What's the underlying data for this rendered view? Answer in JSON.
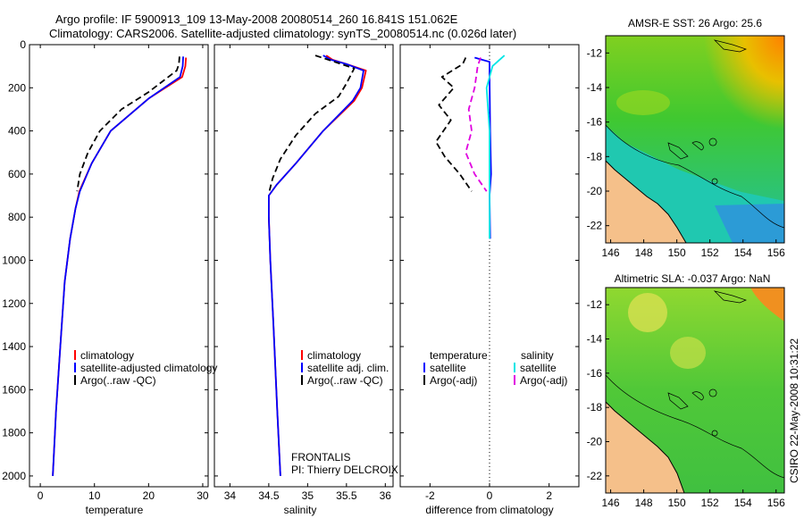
{
  "header": {
    "title_line1": "Argo profile: IF 5900913_109 13-May-2008 20080514_260 16.841S 151.062E",
    "title_line2": "Climatology: CARS2006. Satellite-adjusted climatology: synTS_20080514.nc (0.026d later)"
  },
  "colors": {
    "climatology": "#ff0000",
    "satellite": "#0000ff",
    "argo": "#000000",
    "sat_sal": "#00e5e5",
    "argo_sal": "#e000e0",
    "land": "#f5c08a"
  },
  "chart_data": [
    {
      "id": "temperature",
      "type": "line",
      "xlabel": "temperature",
      "ylabel": "",
      "xlim": [
        -2,
        31
      ],
      "ylim": [
        2050,
        0
      ],
      "xticks": [
        0,
        10,
        20,
        30
      ],
      "yticks": [
        0,
        200,
        400,
        600,
        800,
        1000,
        1200,
        1400,
        1600,
        1800,
        2000
      ],
      "legend": {
        "position": "bottom-right",
        "labels": [
          "climatology",
          "satellite-adjusted climatology",
          "Argo(..raw -QC)"
        ]
      },
      "series": [
        {
          "name": "climatology",
          "color": "#ff0000",
          "dash": "",
          "points": [
            [
              26.9,
              60
            ],
            [
              26.8,
              100
            ],
            [
              26.2,
              150
            ],
            [
              20,
              250
            ],
            [
              13,
              400
            ],
            [
              9.5,
              550
            ],
            [
              7.2,
              680
            ],
            [
              6.5,
              760
            ],
            [
              5.5,
              900
            ],
            [
              4.5,
              1100
            ],
            [
              3.7,
              1400
            ],
            [
              2.9,
              1700
            ],
            [
              2.3,
              2000
            ]
          ]
        },
        {
          "name": "satellite-adjusted climatology",
          "color": "#0000ff",
          "dash": "",
          "points": [
            [
              26.4,
              55
            ],
            [
              26.3,
              100
            ],
            [
              25.8,
              150
            ],
            [
              20,
              250
            ],
            [
              13,
              400
            ],
            [
              9.5,
              550
            ],
            [
              7.3,
              680
            ],
            [
              6.5,
              760
            ],
            [
              5.5,
              900
            ],
            [
              4.5,
              1100
            ],
            [
              3.7,
              1400
            ],
            [
              2.9,
              1700
            ],
            [
              2.3,
              2000
            ]
          ]
        },
        {
          "name": "Argo(..raw -QC)",
          "color": "#000000",
          "dash": "7,4",
          "points": [
            [
              25.7,
              55
            ],
            [
              25.6,
              90
            ],
            [
              25.2,
              120
            ],
            [
              20,
              220
            ],
            [
              15,
              300
            ],
            [
              11,
              400
            ],
            [
              8.8,
              500
            ],
            [
              7.3,
              600
            ],
            [
              6.8,
              680
            ]
          ]
        }
      ]
    },
    {
      "id": "salinity",
      "type": "line",
      "xlabel": "salinity",
      "ylabel": "",
      "xlim": [
        33.8,
        36.1
      ],
      "ylim": [
        2050,
        0
      ],
      "xticks": [
        34,
        34.5,
        35,
        35.5,
        36
      ],
      "yticks": [
        0,
        200,
        400,
        600,
        800,
        1000,
        1200,
        1400,
        1600,
        1800,
        2000
      ],
      "legend": {
        "position": "bottom-right",
        "labels": [
          "climatology",
          "satellite adj. clim.",
          "Argo(..raw -QC)"
        ]
      },
      "annotation": [
        "FRONTALIS",
        "PI: Thierry DELCROIX"
      ],
      "series": [
        {
          "name": "climatology",
          "color": "#ff0000",
          "dash": "",
          "points": [
            [
              35.24,
              50
            ],
            [
              35.32,
              70
            ],
            [
              35.5,
              90
            ],
            [
              35.75,
              120
            ],
            [
              35.7,
              200
            ],
            [
              35.6,
              260
            ],
            [
              35.2,
              400
            ],
            [
              34.85,
              550
            ],
            [
              34.6,
              650
            ],
            [
              34.5,
              700
            ],
            [
              34.5,
              800
            ],
            [
              34.52,
              1000
            ],
            [
              34.56,
              1300
            ],
            [
              34.61,
              1700
            ],
            [
              34.65,
              2000
            ]
          ]
        },
        {
          "name": "satellite adj. clim.",
          "color": "#0000ff",
          "dash": "",
          "points": [
            [
              35.2,
              50
            ],
            [
              35.3,
              70
            ],
            [
              35.5,
              90
            ],
            [
              35.72,
              120
            ],
            [
              35.68,
              200
            ],
            [
              35.58,
              260
            ],
            [
              35.2,
              400
            ],
            [
              34.85,
              550
            ],
            [
              34.6,
              650
            ],
            [
              34.5,
              700
            ],
            [
              34.5,
              800
            ],
            [
              34.52,
              1000
            ],
            [
              34.56,
              1300
            ],
            [
              34.61,
              1700
            ],
            [
              34.65,
              2000
            ]
          ]
        },
        {
          "name": "Argo(..raw -QC)",
          "color": "#000000",
          "dash": "7,4",
          "points": [
            [
              35.1,
              50
            ],
            [
              35.35,
              80
            ],
            [
              35.6,
              110
            ],
            [
              35.5,
              180
            ],
            [
              35.4,
              240
            ],
            [
              35.1,
              320
            ],
            [
              34.85,
              420
            ],
            [
              34.65,
              530
            ],
            [
              34.55,
              620
            ],
            [
              34.5,
              690
            ]
          ]
        }
      ]
    },
    {
      "id": "difference",
      "type": "line",
      "xlabel": "difference from climatology",
      "ylabel": "",
      "xlim": [
        -3,
        3
      ],
      "ylim": [
        2050,
        0
      ],
      "xticks": [
        -2,
        0,
        2
      ],
      "yticks": [
        0,
        200,
        400,
        600,
        800,
        1000,
        1200,
        1400,
        1600,
        1800,
        2000
      ],
      "legend": {
        "position": "bottom-center",
        "labels": [
          "temperature",
          "salinity",
          "satellite",
          "satellite",
          "Argo(-adj)",
          "Argo(-adj)"
        ]
      },
      "series": [
        {
          "name": "temperature satellite",
          "color": "#0000ff",
          "dash": "",
          "points": [
            [
              -0.5,
              60
            ],
            [
              0,
              80
            ],
            [
              0,
              150
            ],
            [
              0.02,
              400
            ],
            [
              0.05,
              600
            ],
            [
              0,
              700
            ],
            [
              0.02,
              900
            ]
          ]
        },
        {
          "name": "temperature Argo(-adj)",
          "color": "#000000",
          "dash": "7,4",
          "points": [
            [
              -0.8,
              60
            ],
            [
              -0.9,
              90
            ],
            [
              -1.6,
              150
            ],
            [
              -1.2,
              200
            ],
            [
              -1.7,
              280
            ],
            [
              -1.3,
              350
            ],
            [
              -1.8,
              450
            ],
            [
              -1.5,
              520
            ],
            [
              -1,
              600
            ],
            [
              -0.6,
              680
            ]
          ]
        },
        {
          "name": "salinity satellite",
          "color": "#00e5e5",
          "dash": "",
          "points": [
            [
              0.5,
              50
            ],
            [
              0.1,
              100
            ],
            [
              -0.1,
              200
            ],
            [
              0,
              400
            ],
            [
              0,
              700
            ],
            [
              0,
              900
            ]
          ]
        },
        {
          "name": "salinity Argo(-adj)",
          "color": "#e000e0",
          "dash": "7,4",
          "points": [
            [
              -0.3,
              60
            ],
            [
              -0.4,
              100
            ],
            [
              -0.5,
              200
            ],
            [
              -0.7,
              300
            ],
            [
              -0.6,
              400
            ],
            [
              -0.8,
              500
            ],
            [
              -0.5,
              600
            ],
            [
              -0.1,
              680
            ]
          ]
        }
      ]
    },
    {
      "id": "sst_map",
      "type": "heatmap",
      "title": "AMSR-E SST: 26 Argo: 25.6",
      "xlim": [
        145.7,
        156.5
      ],
      "ylim": [
        -23,
        -11
      ],
      "xticks": [
        146,
        148,
        150,
        152,
        154,
        156
      ],
      "yticks": [
        -12,
        -14,
        -16,
        -18,
        -20,
        -22
      ]
    },
    {
      "id": "sla_map",
      "type": "heatmap",
      "title": "Altimetric SLA: -0.037 Argo: NaN",
      "xlim": [
        145.7,
        156.5
      ],
      "ylim": [
        -23,
        -11
      ],
      "xticks": [
        146,
        148,
        150,
        152,
        154,
        156
      ],
      "yticks": [
        -12,
        -14,
        -16,
        -18,
        -20,
        -22
      ]
    }
  ],
  "footer": {
    "stamp": "CSIRO 22-May-2008 10:31:22"
  }
}
